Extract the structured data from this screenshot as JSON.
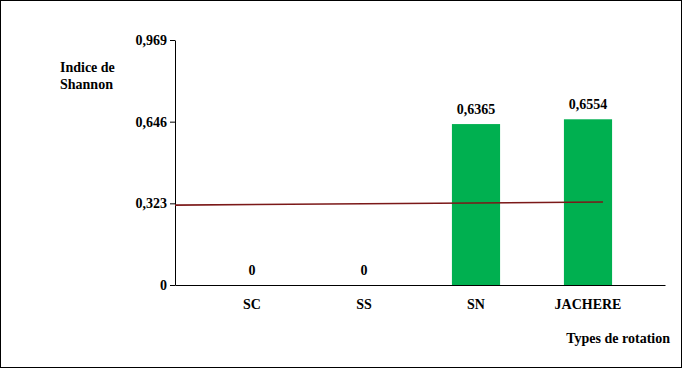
{
  "chart_data": {
    "type": "bar",
    "y_label": "Indice de Shannon",
    "x_label": "Types de rotation",
    "categories": [
      "SC",
      "SS",
      "SN",
      "JACHERE"
    ],
    "values": [
      0,
      0,
      0.6365,
      0.6554
    ],
    "value_labels": [
      "0",
      "0",
      "0,6365",
      "0,6554"
    ],
    "data_labels": true,
    "color": "#00b050",
    "ylim": [
      0,
      0.969
    ],
    "yticks": [
      0,
      {
        "value": 0.323,
        "label": "0,323"
      },
      {
        "value": 0.646,
        "label": "0,646"
      },
      {
        "value": 0.969,
        "label": "0,969"
      }
    ],
    "grid": false,
    "trend_line": [
      0.316,
      0.328
    ]
  }
}
